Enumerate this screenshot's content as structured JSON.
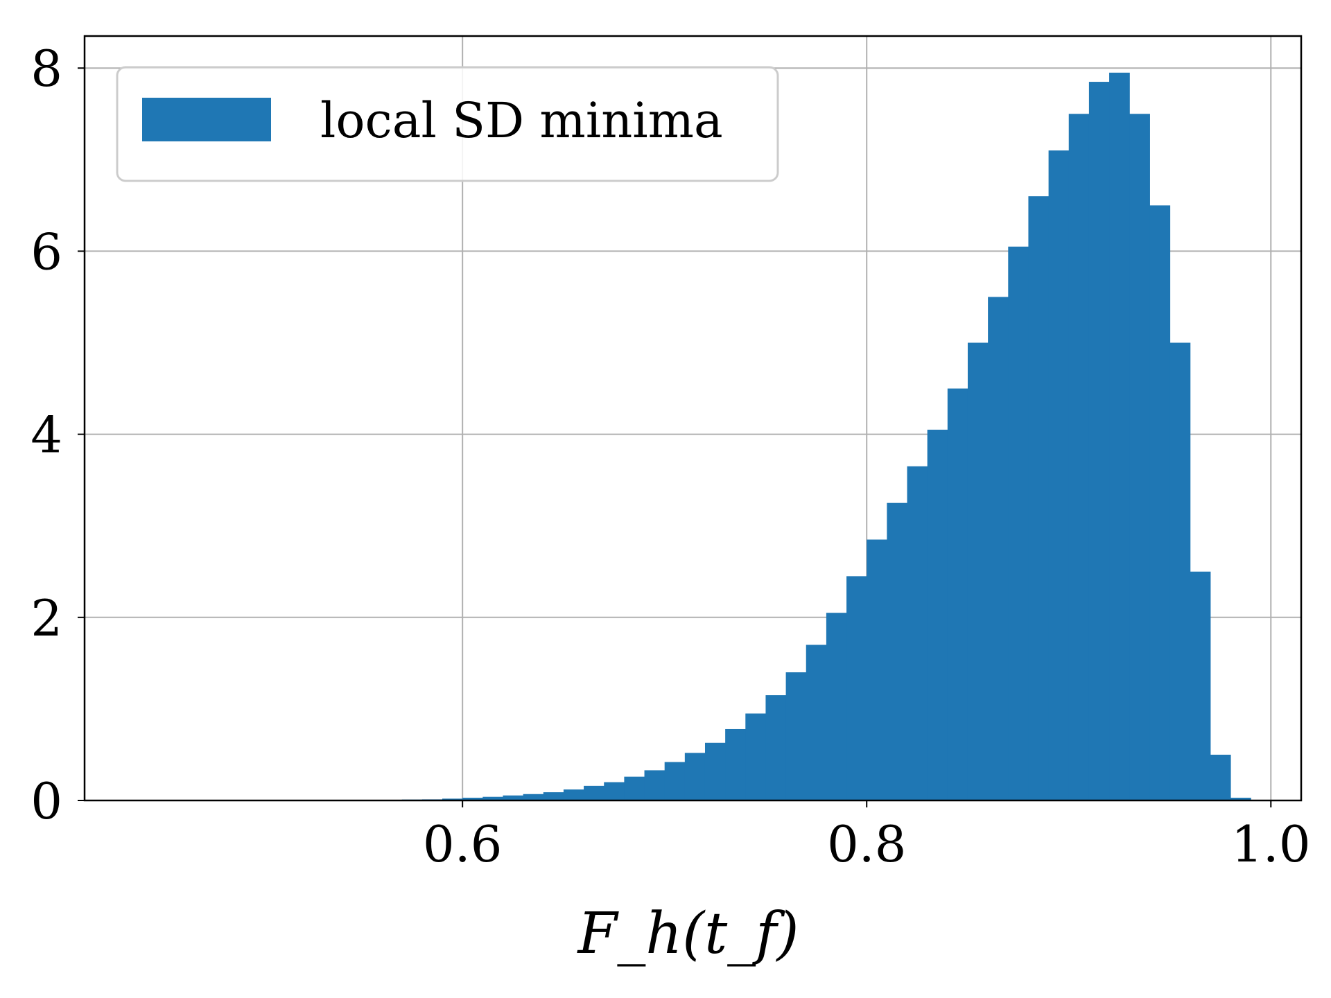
{
  "chart_data": {
    "type": "histogram",
    "title": "",
    "xlabel": "F_h(t_f)",
    "ylabel": "",
    "xlim": [
      0.413,
      1.015
    ],
    "ylim": [
      0,
      8.35
    ],
    "x_ticks": [
      {
        "value": 0.6,
        "label": "0.6"
      },
      {
        "value": 0.8,
        "label": "0.8"
      },
      {
        "value": 1.0,
        "label": "1.0"
      }
    ],
    "y_ticks": [
      {
        "value": 0,
        "label": "0"
      },
      {
        "value": 2,
        "label": "2"
      },
      {
        "value": 4,
        "label": "4"
      },
      {
        "value": 6,
        "label": "6"
      },
      {
        "value": 8,
        "label": "8"
      }
    ],
    "grid": true,
    "legend": {
      "placement": "top-left",
      "entries": [
        {
          "name": "local SD minima",
          "color": "#1f77b4"
        }
      ]
    },
    "series": [
      {
        "name": "local SD minima",
        "color": "#1f77b4",
        "bin_width": 0.01,
        "x": [
          0.555,
          0.565,
          0.575,
          0.585,
          0.595,
          0.605,
          0.615,
          0.625,
          0.635,
          0.645,
          0.655,
          0.665,
          0.675,
          0.685,
          0.695,
          0.705,
          0.715,
          0.725,
          0.735,
          0.745,
          0.755,
          0.765,
          0.775,
          0.785,
          0.795,
          0.805,
          0.815,
          0.825,
          0.835,
          0.845,
          0.855,
          0.865,
          0.875,
          0.885,
          0.895,
          0.905,
          0.915,
          0.925,
          0.935,
          0.945,
          0.955,
          0.965,
          0.975,
          0.985
        ],
        "values": [
          0.0,
          0.005,
          0.01,
          0.012,
          0.02,
          0.03,
          0.04,
          0.055,
          0.07,
          0.09,
          0.12,
          0.16,
          0.2,
          0.26,
          0.33,
          0.42,
          0.52,
          0.63,
          0.78,
          0.95,
          1.15,
          1.4,
          1.7,
          2.05,
          2.45,
          2.85,
          3.25,
          3.65,
          4.05,
          4.5,
          5.0,
          5.5,
          6.05,
          6.6,
          7.1,
          7.5,
          7.85,
          7.95,
          7.5,
          6.5,
          5.0,
          2.5,
          0.5,
          0.03
        ]
      }
    ]
  }
}
